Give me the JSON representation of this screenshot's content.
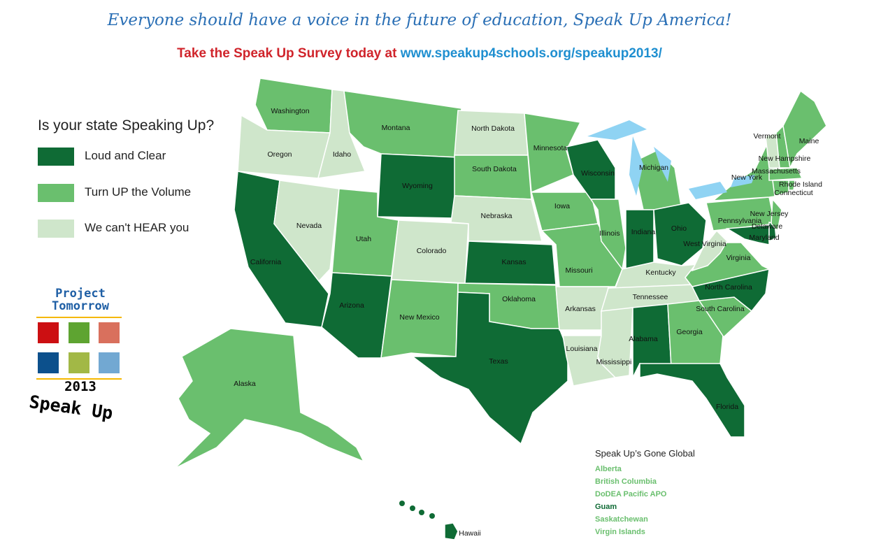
{
  "header": {
    "headline": "Everyone should have a voice in the future of education, Speak Up America!",
    "cta_text": "Take the Speak Up Survey today at ",
    "cta_link": "www.speakup4schools.org/speakup2013/"
  },
  "legend": {
    "title": "Is your state Speaking Up?",
    "items": [
      {
        "key": "loud",
        "label": "Loud and Clear",
        "color": "#0f6b35"
      },
      {
        "key": "turn_up",
        "label": "Turn UP the Volume",
        "color": "#6abf6e"
      },
      {
        "key": "cant_hear",
        "label": "We can't HEAR you",
        "color": "#cfe6cb"
      }
    ]
  },
  "colors": {
    "loud": "#0f6b35",
    "turn_up": "#6abf6e",
    "cant_hear": "#cfe6cb",
    "lakes": "#8fd3f3"
  },
  "logo": {
    "line1": "Project",
    "line2": "Tomorrow",
    "year": "2013",
    "tagline": "Speak Up",
    "squares": [
      "#cc0f12",
      "#5ea431",
      "#d9705d",
      "#0c508c",
      "#a2b846",
      "#72a8d2"
    ]
  },
  "states": [
    {
      "name": "Washington",
      "level": "turn_up"
    },
    {
      "name": "Oregon",
      "level": "cant_hear"
    },
    {
      "name": "California",
      "level": "loud"
    },
    {
      "name": "Nevada",
      "level": "cant_hear"
    },
    {
      "name": "Idaho",
      "level": "cant_hear"
    },
    {
      "name": "Montana",
      "level": "turn_up"
    },
    {
      "name": "Wyoming",
      "level": "loud"
    },
    {
      "name": "Utah",
      "level": "turn_up"
    },
    {
      "name": "Colorado",
      "level": "cant_hear"
    },
    {
      "name": "Arizona",
      "level": "loud"
    },
    {
      "name": "New Mexico",
      "level": "turn_up"
    },
    {
      "name": "North  Dakota",
      "level": "cant_hear"
    },
    {
      "name": "South  Dakota",
      "level": "turn_up"
    },
    {
      "name": "Nebraska",
      "level": "cant_hear"
    },
    {
      "name": "Kansas",
      "level": "loud"
    },
    {
      "name": "Oklahoma",
      "level": "turn_up"
    },
    {
      "name": "Texas",
      "level": "loud"
    },
    {
      "name": "Minnesota",
      "level": "turn_up"
    },
    {
      "name": "Iowa",
      "level": "turn_up"
    },
    {
      "name": "Missouri",
      "level": "turn_up"
    },
    {
      "name": "Arkansas",
      "level": "cant_hear"
    },
    {
      "name": "Louisiana",
      "level": "cant_hear"
    },
    {
      "name": "Wisconsin",
      "level": "loud"
    },
    {
      "name": "Illinois",
      "level": "turn_up"
    },
    {
      "name": "Michigan",
      "level": "turn_up"
    },
    {
      "name": "Indiana",
      "level": "loud"
    },
    {
      "name": "Ohio",
      "level": "loud"
    },
    {
      "name": "Kentucky",
      "level": "cant_hear"
    },
    {
      "name": "Tennessee",
      "level": "cant_hear"
    },
    {
      "name": "Mississippi",
      "level": "cant_hear"
    },
    {
      "name": "Alabama",
      "level": "loud"
    },
    {
      "name": "Georgia",
      "level": "turn_up"
    },
    {
      "name": "Florida",
      "level": "loud"
    },
    {
      "name": "South Carolina",
      "level": "turn_up"
    },
    {
      "name": "North Carolina",
      "level": "loud"
    },
    {
      "name": "Virginia",
      "level": "turn_up"
    },
    {
      "name": "West Virginia",
      "level": "cant_hear"
    },
    {
      "name": "Pennsylvania",
      "level": "turn_up"
    },
    {
      "name": "New York",
      "level": "turn_up"
    },
    {
      "name": "Maryland",
      "level": "loud"
    },
    {
      "name": "Delaware",
      "level": "loud"
    },
    {
      "name": "New Jersey",
      "level": "turn_up"
    },
    {
      "name": "Vermont",
      "level": "cant_hear"
    },
    {
      "name": "New Hampshire",
      "level": "turn_up"
    },
    {
      "name": "Maine",
      "level": "turn_up"
    },
    {
      "name": "Massachusetts",
      "level": "turn_up"
    },
    {
      "name": "Rhode Island",
      "level": "turn_up"
    },
    {
      "name": "Connecticut",
      "level": "turn_up"
    },
    {
      "name": "Alaska",
      "level": "turn_up"
    },
    {
      "name": "Hawaii",
      "level": "loud"
    }
  ],
  "global": {
    "title": "Speak Up’s Gone Global",
    "items": [
      {
        "label": "Alberta",
        "level": "turn_up"
      },
      {
        "label": "British Columbia",
        "level": "turn_up"
      },
      {
        "label": "DoDEA Pacific APO",
        "level": "turn_up"
      },
      {
        "label": "Guam",
        "level": "loud"
      },
      {
        "label": "Saskatchewan",
        "level": "turn_up"
      },
      {
        "label": "Virgin Islands",
        "level": "turn_up"
      }
    ]
  }
}
